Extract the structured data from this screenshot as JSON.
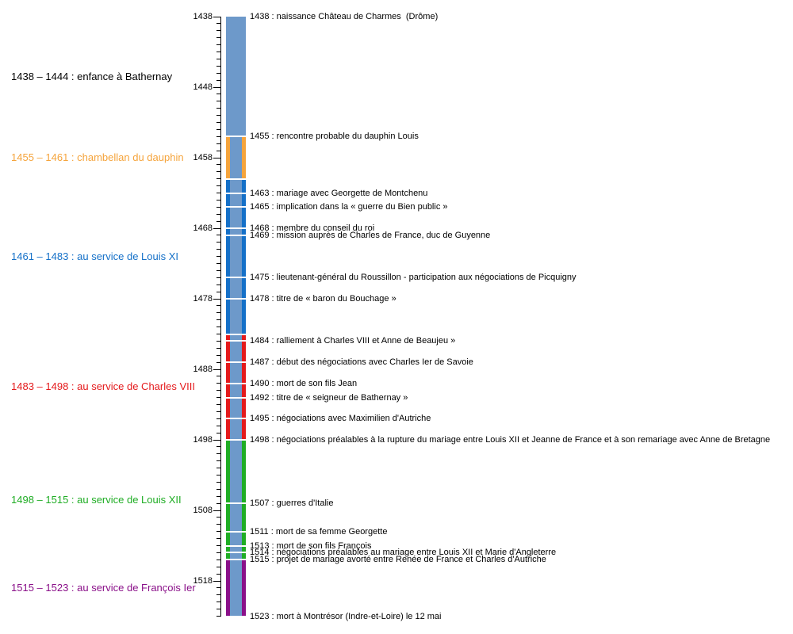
{
  "chart_data": {
    "type": "timeline",
    "title": "",
    "axis": {
      "min_year": 1438,
      "max_year": 1523,
      "major_ticks": [
        1438,
        1448,
        1458,
        1468,
        1478,
        1488,
        1498,
        1508,
        1518
      ],
      "minor_tick_step": 1,
      "orientation": "vertical-top-down"
    },
    "bar": {
      "fill_color": "#6d99ca",
      "separator_color": "#ffffff"
    },
    "segments": [
      {
        "from": 1438,
        "to": 1455,
        "stripe_color": null
      },
      {
        "from": 1455,
        "to": 1461,
        "stripe_color": "#f5a43c"
      },
      {
        "from": 1461,
        "to": 1483,
        "stripe_color": "#1470c8"
      },
      {
        "from": 1483,
        "to": 1498,
        "stripe_color": "#e41a1c"
      },
      {
        "from": 1498,
        "to": 1515,
        "stripe_color": "#1fad24"
      },
      {
        "from": 1515,
        "to": 1523,
        "stripe_color": "#8a1089"
      }
    ],
    "period_labels": [
      {
        "text": "1438 – 1444 : enfance à Bathernay",
        "color": "#000000",
        "center_year": 1446.5
      },
      {
        "text": "1455 – 1461 : chambellan du dauphin",
        "color": "#f5a43c",
        "center_year": 1458
      },
      {
        "text": "1461 – 1483 : au service de Louis XI",
        "color": "#1470c8",
        "center_year": 1472
      },
      {
        "text": "1483 – 1498 : au service de Charles VIII",
        "color": "#e41a1c",
        "center_year": 1490.5
      },
      {
        "text": "1498 – 1515 : au service de Louis XII",
        "color": "#1fad24",
        "center_year": 1506.5
      },
      {
        "text": "1515 – 1523 : au service de François Ier",
        "color": "#8a1089",
        "center_year": 1519
      }
    ],
    "events": [
      {
        "year": 1438,
        "text": "naissance Château de Charmes  (Drôme)"
      },
      {
        "year": 1455,
        "text": "rencontre probable du dauphin Louis"
      },
      {
        "year": 1463,
        "text": "mariage avec Georgette de Montchenu"
      },
      {
        "year": 1465,
        "text": "implication dans la « guerre du Bien public »"
      },
      {
        "year": 1468,
        "text": "membre du conseil du roi"
      },
      {
        "year": 1469,
        "text": "mission auprès de Charles de France, duc de Guyenne"
      },
      {
        "year": 1475,
        "text": "lieutenant-général du Roussillon - participation aux négociations de Picquigny"
      },
      {
        "year": 1478,
        "text": "titre de « baron du Bouchage »"
      },
      {
        "year": 1484,
        "text": "ralliement à Charles VIII et Anne de Beaujeu »"
      },
      {
        "year": 1487,
        "text": "début des négociations avec Charles Ier de Savoie"
      },
      {
        "year": 1490,
        "text": "mort de son fils Jean"
      },
      {
        "year": 1492,
        "text": "titre de « seigneur de Bathernay »"
      },
      {
        "year": 1495,
        "text": "négociations avec Maximilien d'Autriche"
      },
      {
        "year": 1498,
        "text": "négociations préalables à la rupture du mariage entre Louis XII et Jeanne de France et à son remariage avec Anne de Bretagne"
      },
      {
        "year": 1507,
        "text": "guerres d'Italie"
      },
      {
        "year": 1511,
        "text": "mort de sa femme Georgette"
      },
      {
        "year": 1513,
        "text": "mort de son fils François"
      },
      {
        "year": 1514,
        "text": "négociations préalables au mariage entre Louis XII et Marie d'Angleterre"
      },
      {
        "year": 1515,
        "text": "projet de mariage avorté entre Renée de France et Charles d'Autriche"
      },
      {
        "year": 1523,
        "text": "mort à Montrésor (Indre-et-Loire) le 12 mai"
      }
    ]
  }
}
